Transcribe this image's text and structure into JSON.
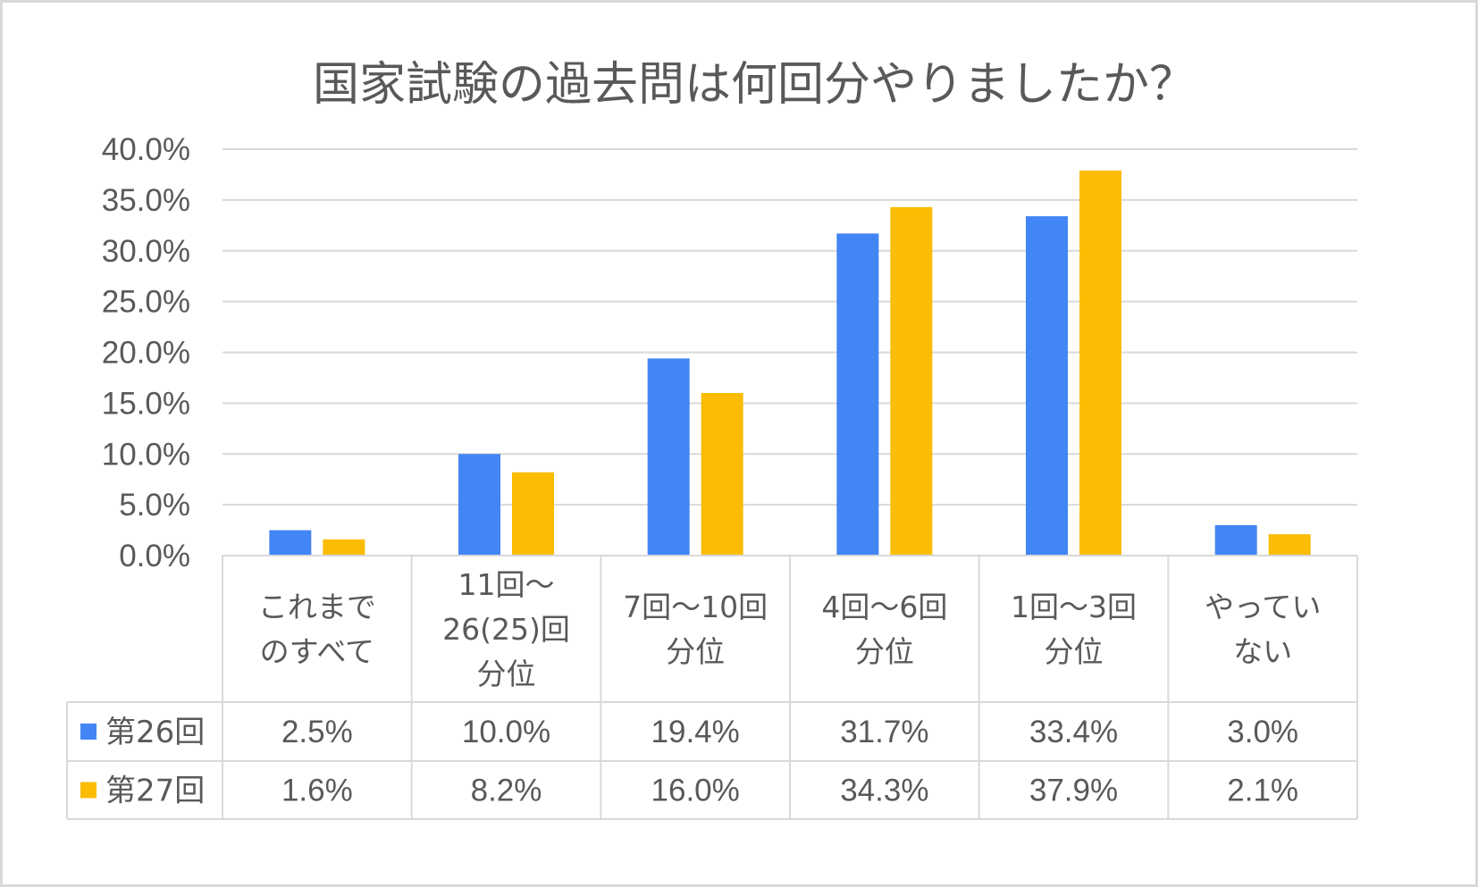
{
  "chart_data": {
    "type": "bar",
    "title": "国家試験の過去問は何回分やりましたか？",
    "categories": [
      [
        "これまで",
        "のすべて"
      ],
      [
        "11回～",
        "26(25)回",
        "分位"
      ],
      [
        "7回～10回",
        "分位"
      ],
      [
        "4回～6回",
        "分位"
      ],
      [
        "1回～3回",
        "分位"
      ],
      [
        "やってい",
        "ない"
      ]
    ],
    "series": [
      {
        "name": "第26回",
        "color": "#4285f4",
        "values": [
          2.5,
          10.0,
          19.4,
          31.7,
          33.4,
          3.0
        ],
        "labels": [
          "2.5%",
          "10.0%",
          "19.4%",
          "31.7%",
          "33.4%",
          "3.0%"
        ]
      },
      {
        "name": "第27回",
        "color": "#fbbc04",
        "values": [
          1.6,
          8.2,
          16.0,
          34.3,
          37.9,
          2.1
        ],
        "labels": [
          "1.6%",
          "8.2%",
          "16.0%",
          "34.3%",
          "37.9%",
          "2.1%"
        ]
      }
    ],
    "yticks": [
      "0.0%",
      "5.0%",
      "10.0%",
      "15.0%",
      "20.0%",
      "25.0%",
      "30.0%",
      "35.0%",
      "40.0%"
    ],
    "ylim": [
      0,
      40
    ],
    "grid": true,
    "legend": "data-table"
  }
}
